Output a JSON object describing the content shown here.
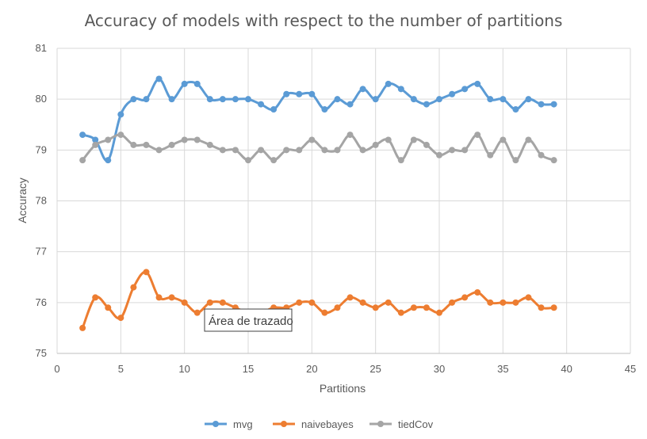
{
  "chart_data": {
    "type": "line",
    "title": "Accuracy of models with respect to the number of partitions",
    "xlabel": "Partitions",
    "ylabel": "Accuracy",
    "xlim": [
      0,
      45
    ],
    "ylim": [
      75,
      81
    ],
    "xticks": [
      0,
      5,
      10,
      15,
      20,
      25,
      30,
      35,
      40,
      45
    ],
    "yticks": [
      75,
      76,
      77,
      78,
      79,
      80,
      81
    ],
    "grid": true,
    "legend": "bottom",
    "x": [
      2,
      3,
      4,
      5,
      6,
      7,
      8,
      9,
      10,
      11,
      12,
      13,
      14,
      15,
      16,
      17,
      18,
      19,
      20,
      21,
      22,
      23,
      24,
      25,
      26,
      27,
      28,
      29,
      30,
      31,
      32,
      33,
      34,
      35,
      36,
      37,
      38,
      39
    ],
    "series": [
      {
        "name": "mvg",
        "color": "#5b9bd5",
        "values": [
          79.3,
          79.2,
          78.8,
          79.7,
          80.0,
          80.0,
          80.4,
          80.0,
          80.3,
          80.3,
          80.0,
          80.0,
          80.0,
          80.0,
          79.9,
          79.8,
          80.1,
          80.1,
          80.1,
          79.8,
          80.0,
          79.9,
          80.2,
          80.0,
          80.3,
          80.2,
          80.0,
          79.9,
          80.0,
          80.1,
          80.2,
          80.3,
          80.0,
          80.0,
          79.8,
          80.0,
          79.9,
          79.9
        ]
      },
      {
        "name": "naivebayes",
        "color": "#ed7d31",
        "values": [
          75.5,
          76.1,
          75.9,
          75.7,
          76.3,
          76.6,
          76.1,
          76.1,
          76.0,
          75.8,
          76.0,
          76.0,
          75.9,
          75.8,
          75.8,
          75.9,
          75.9,
          76.0,
          76.0,
          75.8,
          75.9,
          76.1,
          76.0,
          75.9,
          76.0,
          75.8,
          75.9,
          75.9,
          75.8,
          76.0,
          76.1,
          76.2,
          76.0,
          76.0,
          76.0,
          76.1,
          75.9,
          75.9
        ]
      },
      {
        "name": "tiedCov",
        "color": "#a5a5a5",
        "values": [
          78.8,
          79.1,
          79.2,
          79.3,
          79.1,
          79.1,
          79.0,
          79.1,
          79.2,
          79.2,
          79.1,
          79.0,
          79.0,
          78.8,
          79.0,
          78.8,
          79.0,
          79.0,
          79.2,
          79.0,
          79.0,
          79.3,
          79.0,
          79.1,
          79.2,
          78.8,
          79.2,
          79.1,
          78.9,
          79.0,
          79.0,
          79.3,
          78.9,
          79.2,
          78.8,
          79.2,
          78.9,
          78.8
        ]
      }
    ]
  },
  "tooltip": {
    "text": "Área de trazado"
  }
}
